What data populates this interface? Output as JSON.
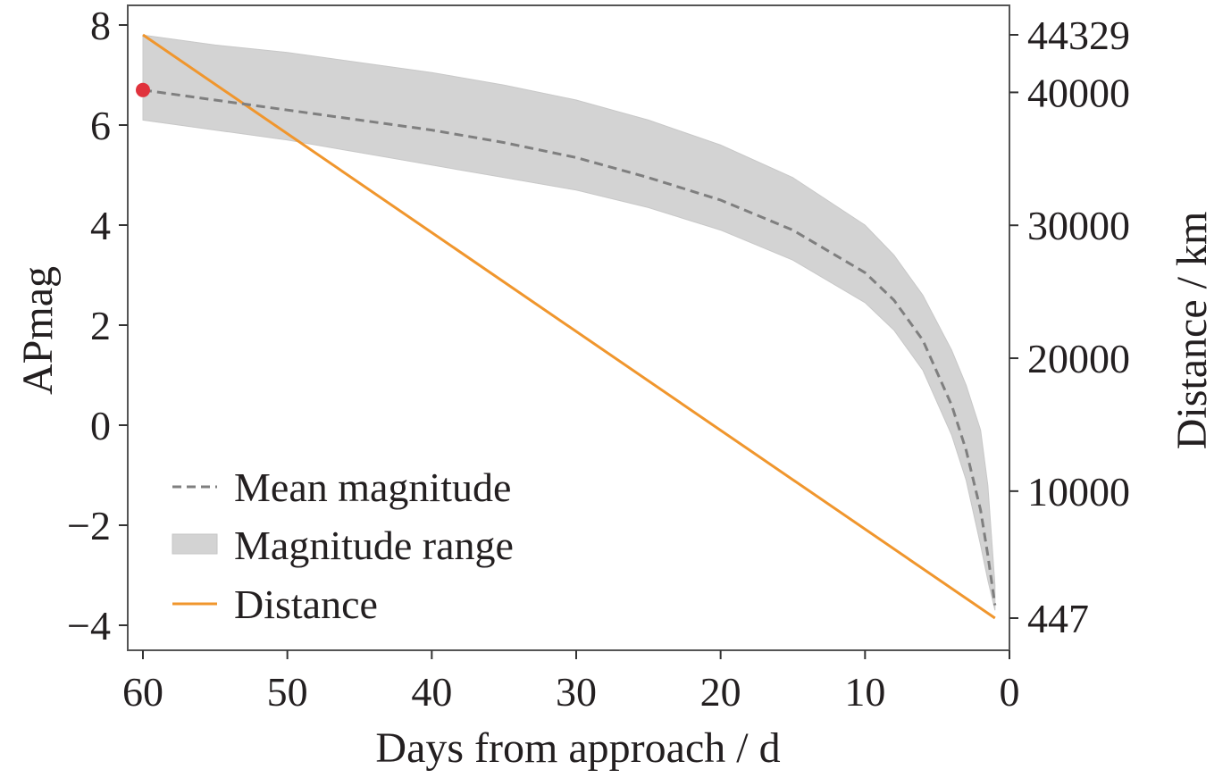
{
  "chart_data": {
    "type": "line",
    "xlabel": "Days from approach / d",
    "ylabel": "APmag",
    "y2label": "Distance / km",
    "xlim": [
      60,
      0
    ],
    "x_reversed": true,
    "ylim": [
      -4,
      8
    ],
    "y2lim": [
      447,
      44329
    ],
    "xticks": [
      "60",
      "50",
      "40",
      "30",
      "20",
      "10",
      "0"
    ],
    "yticks": [
      "8",
      "6",
      "4",
      "2",
      "0",
      "−2",
      "−4"
    ],
    "y2ticks": [
      "44329",
      "40000",
      "30000",
      "20000",
      "10000",
      "447"
    ],
    "grid": false,
    "legend_position": "lower-left",
    "series": [
      {
        "name": "Mean magnitude",
        "axis": "left",
        "style": "dashed",
        "color": "#7f7f7f",
        "x": [
          60,
          55,
          50,
          45,
          40,
          35,
          30,
          25,
          20,
          15,
          10,
          8,
          6,
          4,
          3,
          2,
          1.5,
          1
        ],
        "y": [
          6.7,
          6.5,
          6.3,
          6.1,
          5.9,
          5.65,
          5.35,
          4.95,
          4.5,
          3.9,
          3.05,
          2.5,
          1.7,
          0.4,
          -0.5,
          -1.7,
          -2.6,
          -3.6
        ]
      },
      {
        "name": "Magnitude range",
        "axis": "left",
        "style": "band",
        "color": "#d3d3d3",
        "x": [
          60,
          55,
          50,
          45,
          40,
          35,
          30,
          25,
          20,
          15,
          10,
          8,
          6,
          4,
          3,
          2,
          1.5,
          1
        ],
        "upper": [
          7.8,
          7.6,
          7.45,
          7.25,
          7.05,
          6.8,
          6.5,
          6.1,
          5.6,
          4.95,
          4.0,
          3.4,
          2.6,
          1.5,
          0.8,
          -0.1,
          -1.2,
          -3.2
        ],
        "lower": [
          6.1,
          5.9,
          5.7,
          5.45,
          5.2,
          4.95,
          4.7,
          4.35,
          3.9,
          3.3,
          2.45,
          1.9,
          1.1,
          -0.2,
          -1.1,
          -2.4,
          -3.1,
          -3.7
        ]
      },
      {
        "name": "Distance",
        "axis": "right",
        "style": "solid",
        "color": "#f0962d",
        "x": [
          60,
          1
        ],
        "y": [
          44329,
          447
        ]
      }
    ],
    "marker": {
      "x": 60,
      "y": 6.7,
      "color": "#e0323c"
    }
  }
}
